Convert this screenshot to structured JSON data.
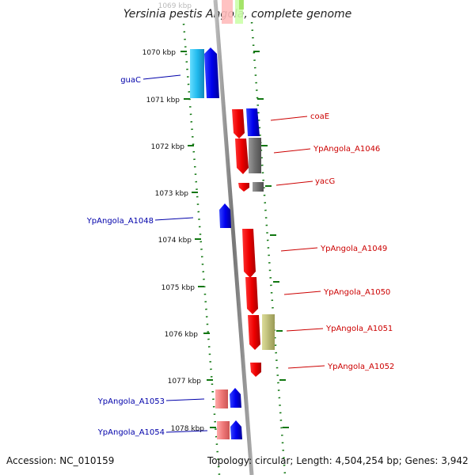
{
  "title": "Yersinia pestis Angola, complete genome",
  "accession_text": "Accession: NC_010159",
  "topology_text": "Topology: circular; Length: 4,504,254 bp; Genes: 3,942",
  "ticks": [
    {
      "label": "1069 kbp",
      "faded": true
    },
    {
      "label": "1070 kbp"
    },
    {
      "label": "1071 kbp"
    },
    {
      "label": "1072 kbp"
    },
    {
      "label": "1073 kbp"
    },
    {
      "label": "1074 kbp"
    },
    {
      "label": "1075 kbp"
    },
    {
      "label": "1076 kbp"
    },
    {
      "label": "1077 kbp"
    },
    {
      "label": "1078 kbp"
    }
  ],
  "left_labels": [
    {
      "text": "guaC",
      "color": "#0000aa"
    },
    {
      "text": "YpAngola_A1048",
      "color": "#0000aa"
    },
    {
      "text": "YpAngola_A1053",
      "color": "#0000aa"
    },
    {
      "text": "YpAngola_A1054",
      "color": "#0000aa"
    }
  ],
  "right_labels": [
    {
      "text": "coaE",
      "color": "#cc0000"
    },
    {
      "text": "YpAngola_A1046",
      "color": "#cc0000"
    },
    {
      "text": "yacG",
      "color": "#cc0000"
    },
    {
      "text": "YpAngola_A1049",
      "color": "#cc0000"
    },
    {
      "text": "YpAngola_A1050",
      "color": "#cc0000"
    },
    {
      "text": "YpAngola_A1051",
      "color": "#cc0000"
    },
    {
      "text": "YpAngola_A1052",
      "color": "#cc0000"
    }
  ],
  "colors": {
    "backbone": "#888888",
    "tick_dots": "#117711",
    "forward_gene": "#0000ee",
    "reverse_gene": "#ee0000",
    "cds_cyan": "#22bbee",
    "gray_feature": "#707070",
    "pink_feature": "#ee7777",
    "olive_feature": "#bbbb77"
  }
}
